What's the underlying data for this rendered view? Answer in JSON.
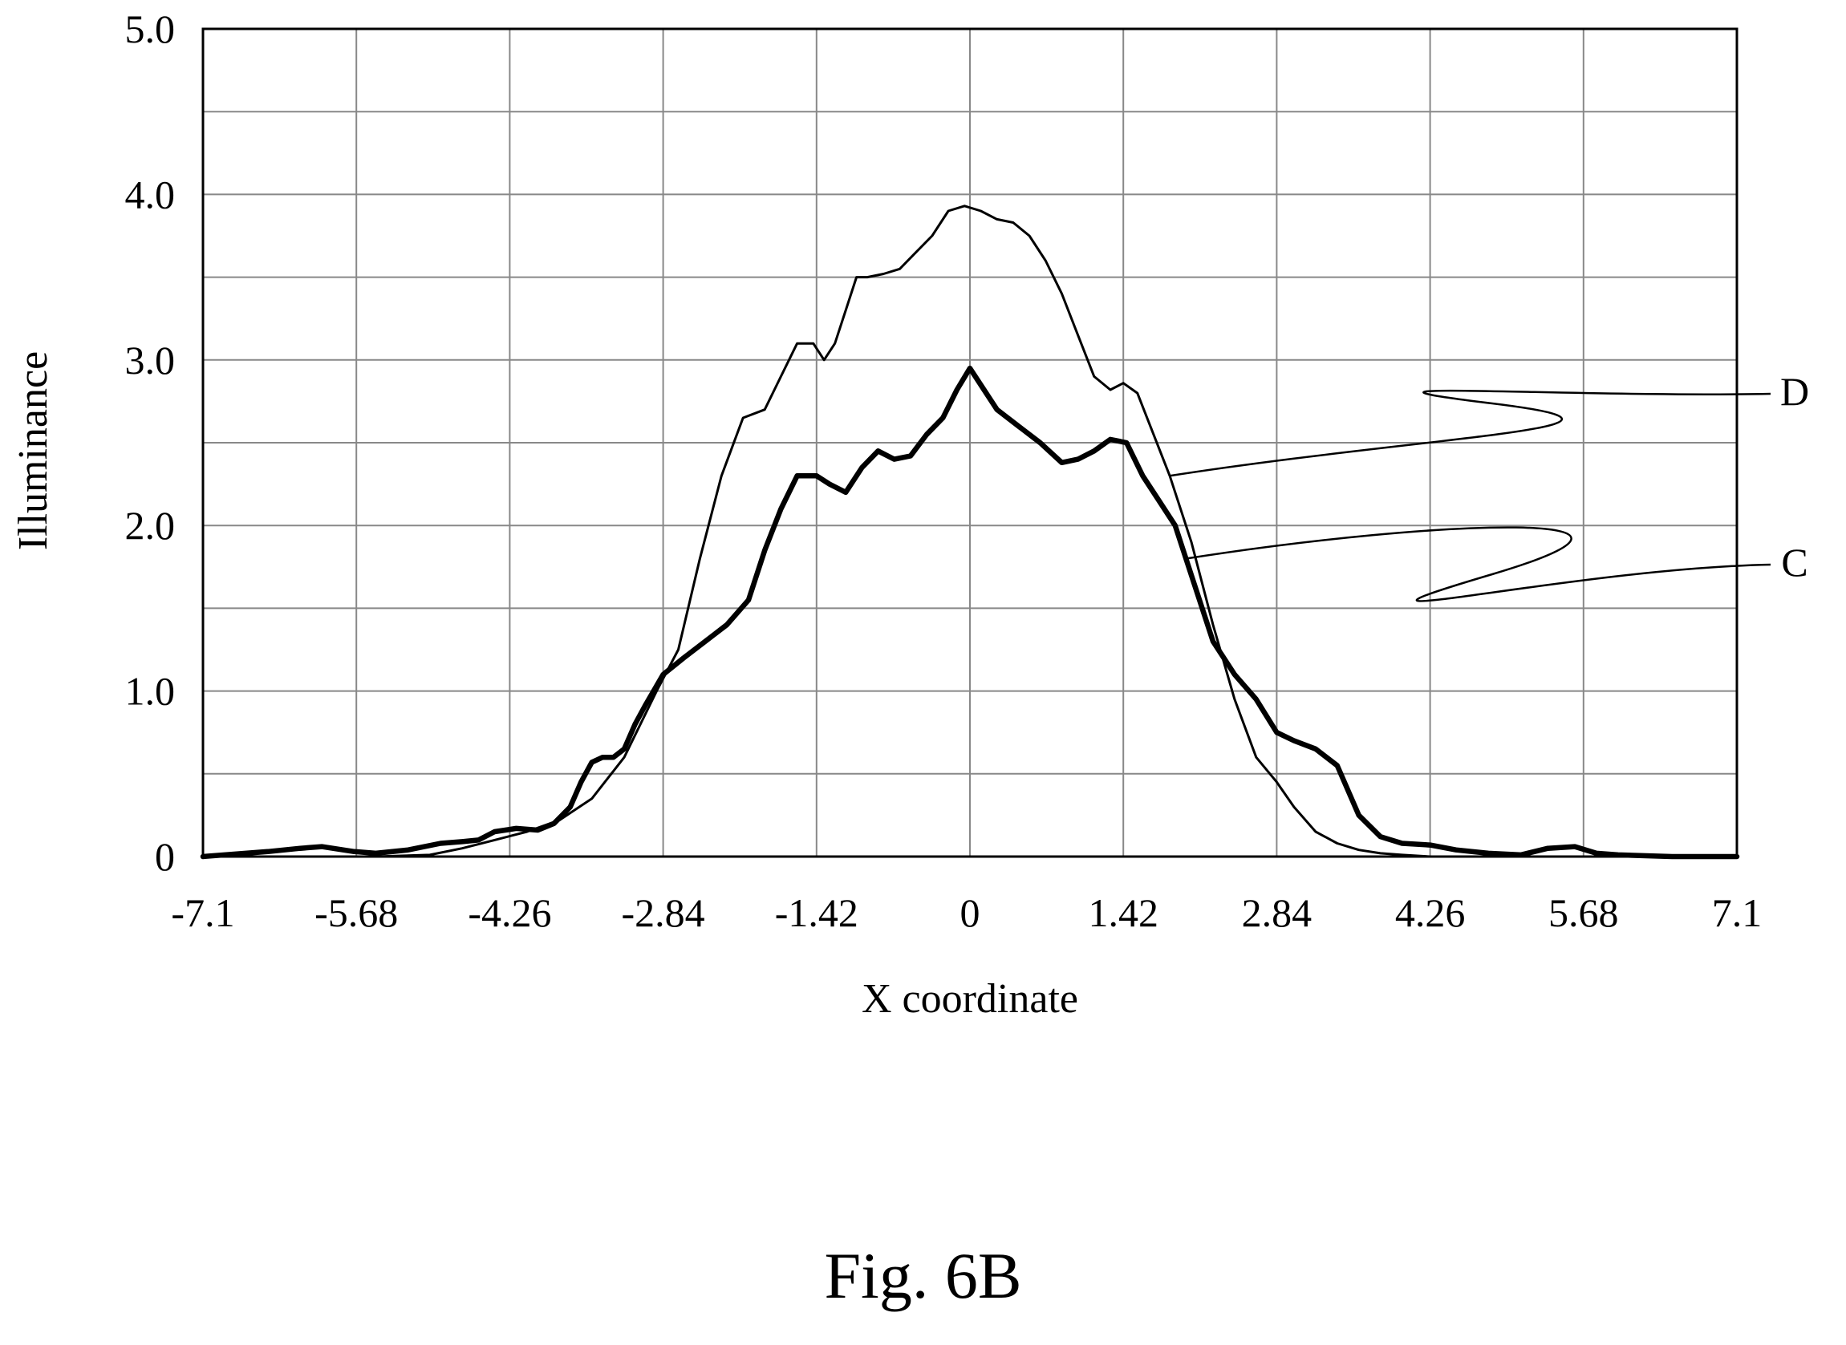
{
  "figure": {
    "caption": "Fig. 6B"
  },
  "chart_data": {
    "type": "line",
    "title": "",
    "xlabel": "X coordinate",
    "ylabel": "Illuminance",
    "xlim": [
      -7.1,
      7.1
    ],
    "ylim": [
      0,
      5.0
    ],
    "xticks": [
      -7.1,
      -5.68,
      -4.26,
      -2.84,
      -1.42,
      0,
      1.42,
      2.84,
      4.26,
      5.68,
      7.1
    ],
    "xtick_labels": [
      "-7.1",
      "-5.68",
      "-4.26",
      "-2.84",
      "-1.42",
      "0",
      "1.42",
      "2.84",
      "4.26",
      "5.68",
      "7.1"
    ],
    "yticks": [
      0,
      1.0,
      2.0,
      3.0,
      4.0,
      5.0
    ],
    "ytick_labels": [
      "0",
      "1.0",
      "2.0",
      "3.0",
      "4.0",
      "5.0"
    ],
    "grid": true,
    "series": [
      {
        "name": "D",
        "line_weight": "thin",
        "x": [
          -7.1,
          -6.5,
          -6.0,
          -5.5,
          -5.0,
          -4.7,
          -4.4,
          -4.1,
          -3.8,
          -3.5,
          -3.2,
          -2.9,
          -2.7,
          -2.5,
          -2.3,
          -2.1,
          -1.9,
          -1.75,
          -1.6,
          -1.45,
          -1.35,
          -1.25,
          -1.15,
          -1.05,
          -0.95,
          -0.8,
          -0.65,
          -0.5,
          -0.35,
          -0.2,
          -0.05,
          0.1,
          0.25,
          0.4,
          0.55,
          0.7,
          0.85,
          1.0,
          1.15,
          1.3,
          1.42,
          1.55,
          1.7,
          1.85,
          2.05,
          2.25,
          2.45,
          2.65,
          2.84,
          3.0,
          3.2,
          3.4,
          3.6,
          3.8,
          4.0,
          4.26,
          4.5,
          5.0,
          5.5,
          6.0,
          6.5,
          7.1
        ],
        "y": [
          0.0,
          0.0,
          0.0,
          0.0,
          0.01,
          0.05,
          0.1,
          0.15,
          0.22,
          0.35,
          0.6,
          1.0,
          1.25,
          1.8,
          2.3,
          2.65,
          2.7,
          2.9,
          3.1,
          3.1,
          3.0,
          3.1,
          3.3,
          3.5,
          3.5,
          3.52,
          3.55,
          3.65,
          3.75,
          3.9,
          3.93,
          3.9,
          3.85,
          3.83,
          3.75,
          3.6,
          3.4,
          3.15,
          2.9,
          2.82,
          2.86,
          2.8,
          2.55,
          2.3,
          1.9,
          1.4,
          0.95,
          0.6,
          0.45,
          0.3,
          0.15,
          0.08,
          0.04,
          0.02,
          0.01,
          0.0,
          0.0,
          0.0,
          0.0,
          0.0,
          0.0,
          0.0
        ]
      },
      {
        "name": "C",
        "line_weight": "bold",
        "x": [
          -7.1,
          -6.5,
          -6.2,
          -6.0,
          -5.7,
          -5.5,
          -5.2,
          -4.9,
          -4.7,
          -4.55,
          -4.4,
          -4.2,
          -4.0,
          -3.85,
          -3.7,
          -3.6,
          -3.5,
          -3.4,
          -3.3,
          -3.2,
          -3.1,
          -3.0,
          -2.84,
          -2.65,
          -2.45,
          -2.25,
          -2.05,
          -1.9,
          -1.75,
          -1.6,
          -1.42,
          -1.3,
          -1.15,
          -1.0,
          -0.85,
          -0.7,
          -0.55,
          -0.4,
          -0.25,
          -0.12,
          0.0,
          0.1,
          0.25,
          0.45,
          0.65,
          0.85,
          1.0,
          1.15,
          1.3,
          1.45,
          1.6,
          1.75,
          1.9,
          2.05,
          2.25,
          2.45,
          2.65,
          2.84,
          3.0,
          3.2,
          3.4,
          3.6,
          3.8,
          4.0,
          4.26,
          4.5,
          4.8,
          5.1,
          5.35,
          5.6,
          5.8,
          6.0,
          6.5,
          7.1
        ],
        "y": [
          0.0,
          0.03,
          0.05,
          0.06,
          0.03,
          0.02,
          0.04,
          0.08,
          0.09,
          0.1,
          0.15,
          0.17,
          0.16,
          0.2,
          0.3,
          0.45,
          0.57,
          0.6,
          0.6,
          0.65,
          0.8,
          0.92,
          1.1,
          1.2,
          1.3,
          1.4,
          1.55,
          1.85,
          2.1,
          2.3,
          2.3,
          2.25,
          2.2,
          2.35,
          2.45,
          2.4,
          2.42,
          2.55,
          2.65,
          2.82,
          2.95,
          2.85,
          2.7,
          2.6,
          2.5,
          2.38,
          2.4,
          2.45,
          2.52,
          2.5,
          2.3,
          2.15,
          2.0,
          1.7,
          1.3,
          1.1,
          0.95,
          0.75,
          0.7,
          0.65,
          0.55,
          0.25,
          0.12,
          0.08,
          0.07,
          0.04,
          0.02,
          0.01,
          0.05,
          0.06,
          0.02,
          0.01,
          0.0,
          0.0
        ]
      }
    ]
  }
}
